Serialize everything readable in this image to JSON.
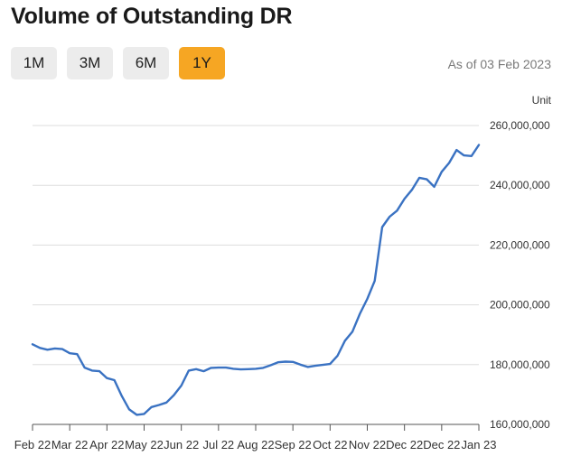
{
  "title": "Volume of Outstanding DR",
  "range_tabs": [
    {
      "label": "1M",
      "active": false
    },
    {
      "label": "3M",
      "active": false
    },
    {
      "label": "6M",
      "active": false
    },
    {
      "label": "1Y",
      "active": true
    }
  ],
  "as_of": "As of 03 Feb 2023",
  "unit_label": "Unit",
  "colors": {
    "line": "#3a72c2",
    "active_tab": "#f6a623",
    "gridline": "#dddddd"
  },
  "chart_data": {
    "type": "line",
    "title": "Volume of Outstanding DR",
    "ylabel": "Unit",
    "ylim": [
      160000000,
      260000000
    ],
    "y_ticks": [
      {
        "value": 160000000,
        "label": "160,000,000"
      },
      {
        "value": 180000000,
        "label": "180,000,000"
      },
      {
        "value": 200000000,
        "label": "200,000,000"
      },
      {
        "value": 220000000,
        "label": "220,000,000"
      },
      {
        "value": 240000000,
        "label": "240,000,000"
      },
      {
        "value": 260000000,
        "label": "260,000,000"
      }
    ],
    "x_ticks": [
      "Feb 22",
      "Mar 22",
      "Apr 22",
      "May 22",
      "Jun 22",
      "Jul 22",
      "Aug 22",
      "Sep 22",
      "Oct 22",
      "Nov 22",
      "Dec 22",
      "Dec 22",
      "Jan 23"
    ],
    "grid": true,
    "series": [
      {
        "values": [
          186800000,
          185600000,
          185000000,
          185400000,
          185200000,
          183800000,
          183500000,
          179000000,
          178000000,
          177800000,
          175500000,
          174800000,
          169500000,
          165000000,
          163200000,
          163500000,
          165800000,
          166500000,
          167300000,
          169800000,
          173000000,
          178000000,
          178500000,
          177800000,
          178900000,
          179000000,
          179000000,
          178600000,
          178400000,
          178500000,
          178600000,
          178900000,
          179800000,
          180800000,
          181000000,
          180900000,
          180000000,
          179200000,
          179600000,
          179900000,
          180200000,
          183000000,
          188000000,
          191000000,
          197000000,
          202000000,
          208000000,
          226000000,
          229500000,
          231500000,
          235500000,
          238500000,
          242500000,
          242000000,
          239500000,
          244500000,
          247500000,
          251800000,
          250000000,
          249800000,
          253500000
        ]
      }
    ]
  }
}
